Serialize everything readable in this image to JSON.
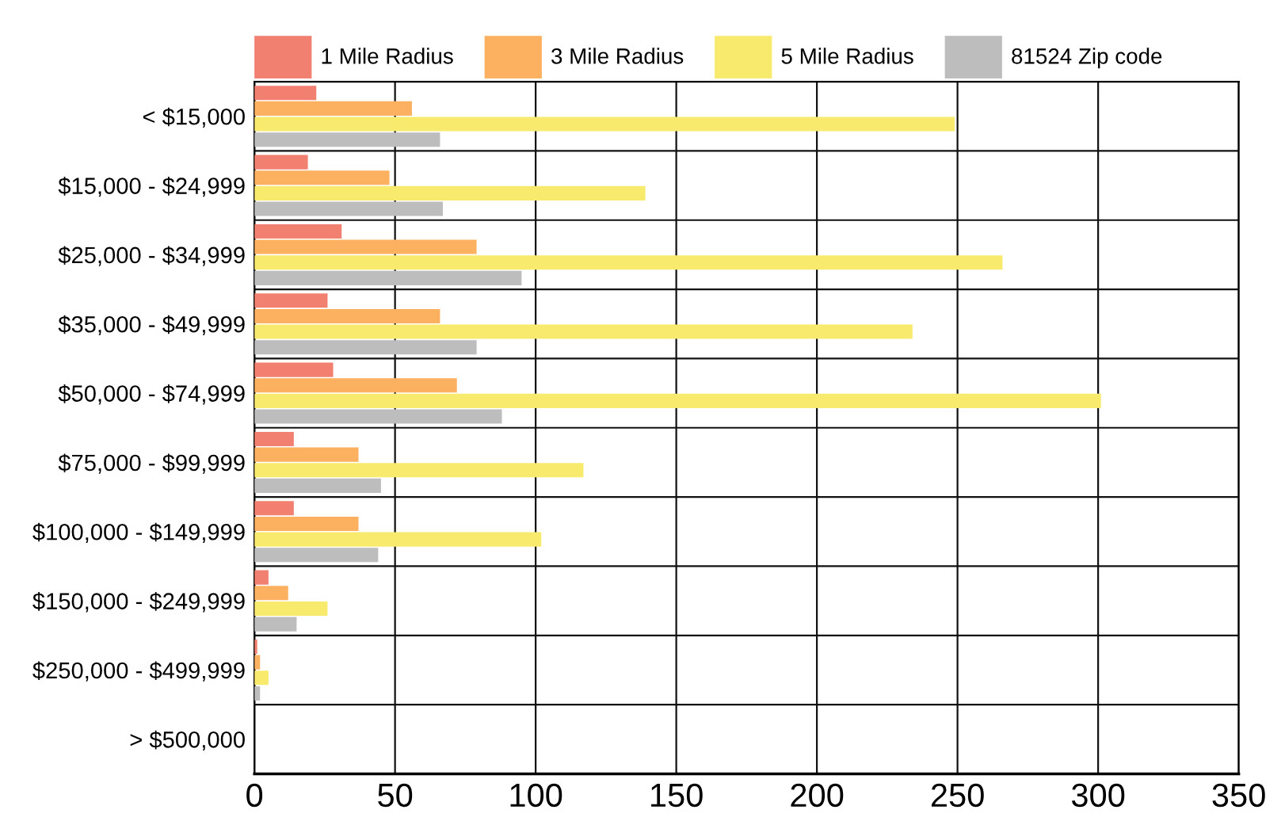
{
  "chart_data": {
    "type": "bar",
    "orientation": "horizontal",
    "categories": [
      "< $15,000",
      "$15,000 - $24,999",
      "$25,000 - $34,999",
      "$35,000 - $49,999",
      "$50,000 - $74,999",
      "$75,000 - $99,999",
      "$100,000 - $149,999",
      "$150,000 - $249,999",
      "$250,000 - $499,999",
      "> $500,000"
    ],
    "series": [
      {
        "name": "1 Mile Radius",
        "color": "#f28070",
        "values": [
          22,
          19,
          31,
          26,
          28,
          14,
          14,
          5,
          1,
          0
        ]
      },
      {
        "name": "3 Mile Radius",
        "color": "#fbb160",
        "values": [
          56,
          48,
          79,
          66,
          72,
          37,
          37,
          12,
          2,
          0
        ]
      },
      {
        "name": "5 Mile Radius",
        "color": "#f8ea6c",
        "values": [
          249,
          139,
          266,
          234,
          301,
          117,
          102,
          26,
          5,
          0
        ]
      },
      {
        "name": "81524 Zip code",
        "color": "#bdbdbd",
        "values": [
          66,
          67,
          95,
          79,
          88,
          45,
          44,
          15,
          2,
          0
        ]
      }
    ],
    "xlim": [
      0,
      350
    ],
    "xticks": [
      0,
      50,
      100,
      150,
      200,
      250,
      300,
      350
    ],
    "grid": true,
    "legend": "top"
  }
}
